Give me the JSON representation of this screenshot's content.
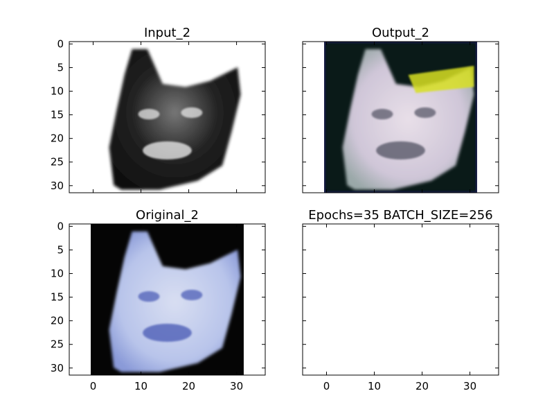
{
  "chart_data": [
    {
      "type": "image",
      "title": "Input_2",
      "content": "grayscale cat face",
      "image_extent": [
        -0.5,
        31.5
      ],
      "xlim": [
        -5,
        36
      ],
      "ylim": [
        31.5,
        -0.5
      ],
      "yticks": [
        0,
        5,
        10,
        15,
        20,
        25,
        30
      ],
      "xticks": [],
      "colors": {
        "background": "#ffffff",
        "subject": "#1a1a1a",
        "highlight": "#e6e6e6"
      }
    },
    {
      "type": "image",
      "title": "Output_2",
      "content": "reconstructed light pink cat face on dark background",
      "image_extent": [
        -0.5,
        31.5
      ],
      "xlim": [
        -5,
        36
      ],
      "ylim": [
        31.5,
        -0.5
      ],
      "yticks": [],
      "xticks": [],
      "colors": {
        "background": "#0a1a18",
        "subject": "#e8d8e8",
        "artifact": "#d8e020"
      }
    },
    {
      "type": "image",
      "title": "Original_2",
      "content": "blue-tinted cat face on black background",
      "image_extent": [
        -0.5,
        31.5
      ],
      "xlim": [
        -5,
        36
      ],
      "ylim": [
        31.5,
        -0.5
      ],
      "yticks": [
        0,
        5,
        10,
        15,
        20,
        25,
        30
      ],
      "xticks": [
        0,
        10,
        20,
        30
      ],
      "colors": {
        "background": "#050505",
        "subject": "#cdd6f0",
        "shadow": "#5060b8"
      }
    },
    {
      "type": "empty",
      "title": "Epochs=35 BATCH_SIZE=256",
      "xlim": [
        -5,
        36
      ],
      "ylim": [
        31.5,
        -0.5
      ],
      "yticks": [],
      "xticks": [
        0,
        10,
        20,
        30
      ]
    }
  ]
}
